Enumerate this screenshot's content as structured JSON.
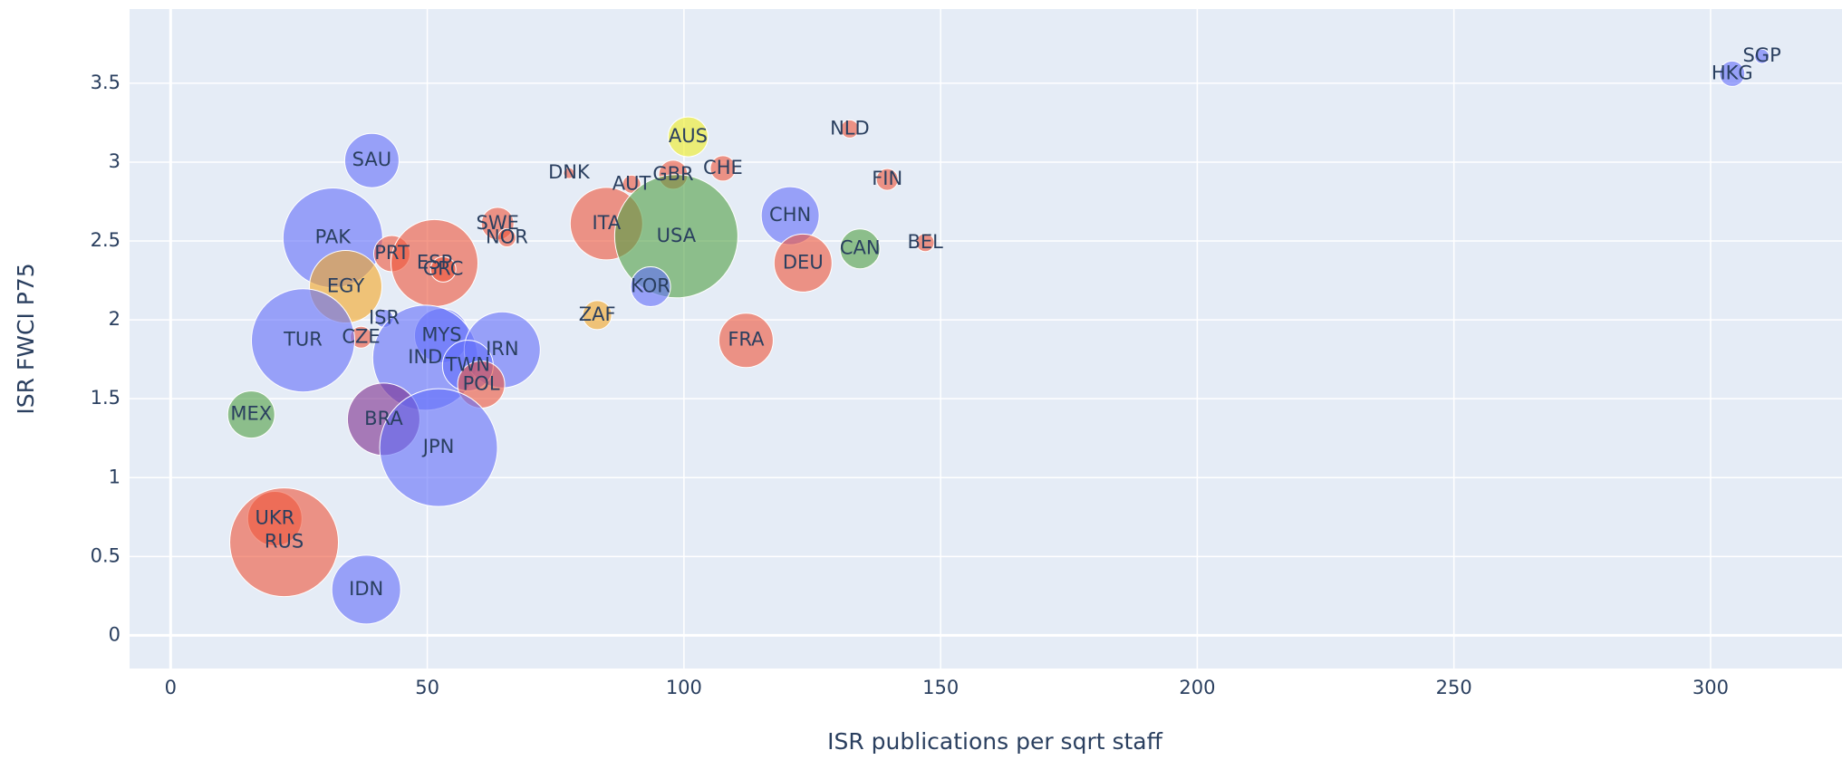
{
  "chart_data": {
    "type": "scatter",
    "xlabel": "ISR publications per sqrt staff",
    "ylabel": "ISR FWCI P75",
    "labels": [
      "SGP",
      "HKG",
      "NLD",
      "AUS",
      "DNK",
      "AUT",
      "GBR",
      "CHE",
      "FIN",
      "SAU",
      "CHN",
      "SWE",
      "NOR",
      "ITA",
      "USA",
      "PAK",
      "PRT",
      "ESP",
      "GRC",
      "CAN",
      "BEL",
      "DEU",
      "EGY",
      "KOR",
      "ZAF",
      "ISR",
      "CZE",
      "TUR",
      "MYS",
      "IND",
      "IRN",
      "TWN",
      "POL",
      "FRA",
      "MEX",
      "BRA",
      "JPN",
      "UKR",
      "RUS",
      "IDN"
    ],
    "x": [
      310,
      304.2,
      132.3,
      100.8,
      77.6,
      89.8,
      97.9,
      107.6,
      139.6,
      39.2,
      120.7,
      63.7,
      65.5,
      84.9,
      98.5,
      31.6,
      43.1,
      51.4,
      53.1,
      134.3,
      147.0,
      123.2,
      34.1,
      93.5,
      83.1,
      41.6,
      37.1,
      25.8,
      52.8,
      49.6,
      64.6,
      57.9,
      60.5,
      112.1,
      15.7,
      41.5,
      52.2,
      20.3,
      22.1,
      38.1
    ],
    "values": [
      3.67,
      3.56,
      3.21,
      3.16,
      2.93,
      2.86,
      2.92,
      2.96,
      2.89,
      3.01,
      2.66,
      2.61,
      2.52,
      2.61,
      2.53,
      2.52,
      2.42,
      2.36,
      2.32,
      2.45,
      2.49,
      2.36,
      2.21,
      2.21,
      2.03,
      2.01,
      1.89,
      1.87,
      1.9,
      1.76,
      1.81,
      1.71,
      1.59,
      1.87,
      1.4,
      1.37,
      1.19,
      0.74,
      0.59,
      0.29
    ],
    "sizes": [
      8,
      14,
      10,
      22,
      6,
      10,
      16,
      14,
      12,
      30,
      32,
      18,
      10,
      40,
      68,
      55,
      20,
      48,
      14,
      22,
      10,
      32,
      40,
      22,
      16,
      10,
      12,
      57,
      30,
      58,
      42,
      28,
      26,
      30,
      26,
      40,
      65,
      30,
      60,
      38
    ],
    "colors": [
      "#636efa",
      "#636efa",
      "#ef553b",
      "#eeee22",
      "#ef553b",
      "#ef553b",
      "#ef553b",
      "#ef553b",
      "#ef553b",
      "#636efa",
      "#636efa",
      "#ef553b",
      "#ef553b",
      "#ef553b",
      "#50a045",
      "#636efa",
      "#ef553b",
      "#ef553b",
      "#ef553b",
      "#50a045",
      "#ef553b",
      "#ef553b",
      "#f5a623",
      "#636efa",
      "#f5a623",
      "#636efa",
      "#ef553b",
      "#636efa",
      "#636efa",
      "#636efa",
      "#636efa",
      "#636efa",
      "#ef553b",
      "#ef553b",
      "#50a045",
      "#7b2d8e",
      "#636efa",
      "#ef553b",
      "#ef553b",
      "#636efa"
    ],
    "xlim": [
      -8,
      325.6
    ],
    "ylim": [
      -0.21,
      3.97
    ],
    "xticks": [
      0,
      50,
      100,
      150,
      200,
      250,
      300
    ],
    "yticks": [
      0,
      0.5,
      1,
      1.5,
      2,
      2.5,
      3,
      3.5
    ],
    "grid": true
  }
}
